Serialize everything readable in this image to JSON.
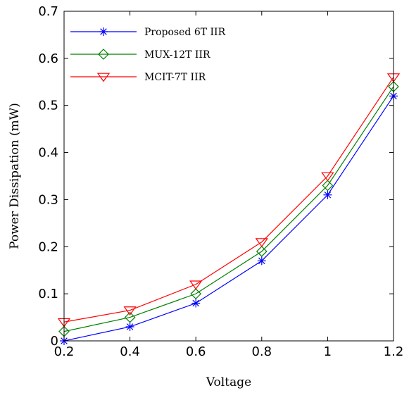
{
  "chart_data": {
    "type": "line",
    "xlabel": "Voltage",
    "ylabel": "Power Dissipation (mW)",
    "xlim": [
      0.2,
      1.2
    ],
    "ylim": [
      0,
      0.7
    ],
    "xticks": [
      "0.2",
      "0.4",
      "0.6",
      "0.8",
      "1",
      "1.2"
    ],
    "yticks": [
      "0",
      "0.1",
      "0.2",
      "0.3",
      "0.4",
      "0.5",
      "0.6",
      "0.7"
    ],
    "x": [
      0.2,
      0.4,
      0.6,
      0.8,
      1.0,
      1.2
    ],
    "legend_position": "top-left",
    "grid": false,
    "series": [
      {
        "name": "Proposed 6T IIR",
        "color": "#0000ff",
        "marker": "asterisk",
        "values": [
          0.0,
          0.03,
          0.08,
          0.17,
          0.31,
          0.52
        ]
      },
      {
        "name": "MUX-12T IIR",
        "color": "#008000",
        "marker": "diamond",
        "values": [
          0.02,
          0.05,
          0.1,
          0.19,
          0.33,
          0.54
        ]
      },
      {
        "name": "MCIT-7T IIR",
        "color": "#ff0000",
        "marker": "triangle-down",
        "values": [
          0.04,
          0.065,
          0.12,
          0.21,
          0.35,
          0.56
        ]
      }
    ]
  }
}
